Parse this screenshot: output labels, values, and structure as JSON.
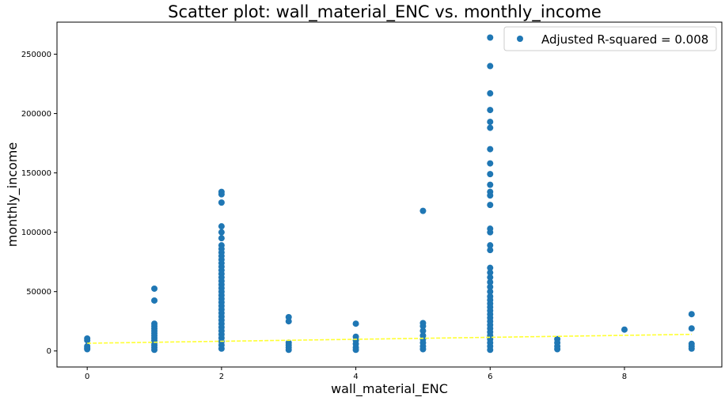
{
  "chart_data": {
    "type": "scatter",
    "title": "Scatter plot: wall_material_ENC vs. monthly_income",
    "xlabel": "wall_material_ENC",
    "ylabel": "monthly_income",
    "xlim": [
      -0.45,
      9.45
    ],
    "ylim": [
      -13500,
      277000
    ],
    "xticks": [
      0,
      2,
      4,
      6,
      8
    ],
    "yticks": [
      0,
      50000,
      100000,
      150000,
      200000,
      250000
    ],
    "grid": false,
    "legend_position": "top-right",
    "colors": {
      "points": "#1f77b4",
      "fit_line": "#ffff33",
      "axes": "#000000"
    },
    "series": [
      {
        "name": "Adjusted R-squared = 0.008",
        "points": [
          [
            0,
            10500
          ],
          [
            0,
            9000
          ],
          [
            0,
            4000
          ],
          [
            0,
            2500
          ],
          [
            0,
            1500
          ],
          [
            1,
            52500
          ],
          [
            1,
            42500
          ],
          [
            1,
            23000
          ],
          [
            1,
            21000
          ],
          [
            1,
            19000
          ],
          [
            1,
            17000
          ],
          [
            1,
            15000
          ],
          [
            1,
            13000
          ],
          [
            1,
            11000
          ],
          [
            1,
            9000
          ],
          [
            1,
            7000
          ],
          [
            1,
            5000
          ],
          [
            1,
            3000
          ],
          [
            1,
            1000
          ],
          [
            2,
            134000
          ],
          [
            2,
            132000
          ],
          [
            2,
            125000
          ],
          [
            2,
            105000
          ],
          [
            2,
            100000
          ],
          [
            2,
            95000
          ],
          [
            2,
            89000
          ],
          [
            2,
            86000
          ],
          [
            2,
            83000
          ],
          [
            2,
            80000
          ],
          [
            2,
            77000
          ],
          [
            2,
            74000
          ],
          [
            2,
            71000
          ],
          [
            2,
            68000
          ],
          [
            2,
            65000
          ],
          [
            2,
            62000
          ],
          [
            2,
            59000
          ],
          [
            2,
            56000
          ],
          [
            2,
            53000
          ],
          [
            2,
            50000
          ],
          [
            2,
            47000
          ],
          [
            2,
            44000
          ],
          [
            2,
            41000
          ],
          [
            2,
            38000
          ],
          [
            2,
            35000
          ],
          [
            2,
            32000
          ],
          [
            2,
            29000
          ],
          [
            2,
            26000
          ],
          [
            2,
            23000
          ],
          [
            2,
            20000
          ],
          [
            2,
            17000
          ],
          [
            2,
            14000
          ],
          [
            2,
            11000
          ],
          [
            2,
            8000
          ],
          [
            2,
            5000
          ],
          [
            2,
            2000
          ],
          [
            3,
            28500
          ],
          [
            3,
            25000
          ],
          [
            3,
            7000
          ],
          [
            3,
            5000
          ],
          [
            3,
            3000
          ],
          [
            3,
            1000
          ],
          [
            4,
            23000
          ],
          [
            4,
            12000
          ],
          [
            4,
            9000
          ],
          [
            4,
            6000
          ],
          [
            4,
            3000
          ],
          [
            4,
            1000
          ],
          [
            5,
            118000
          ],
          [
            5,
            23500
          ],
          [
            5,
            21000
          ],
          [
            5,
            17000
          ],
          [
            5,
            13000
          ],
          [
            5,
            10000
          ],
          [
            5,
            7000
          ],
          [
            5,
            4000
          ],
          [
            5,
            1500
          ],
          [
            6,
            264000
          ],
          [
            6,
            240000
          ],
          [
            6,
            217000
          ],
          [
            6,
            203000
          ],
          [
            6,
            193000
          ],
          [
            6,
            188000
          ],
          [
            6,
            170000
          ],
          [
            6,
            158000
          ],
          [
            6,
            149000
          ],
          [
            6,
            140000
          ],
          [
            6,
            134000
          ],
          [
            6,
            131000
          ],
          [
            6,
            123000
          ],
          [
            6,
            103000
          ],
          [
            6,
            100000
          ],
          [
            6,
            89000
          ],
          [
            6,
            85000
          ],
          [
            6,
            70000
          ],
          [
            6,
            66000
          ],
          [
            6,
            62000
          ],
          [
            6,
            58000
          ],
          [
            6,
            54000
          ],
          [
            6,
            50000
          ],
          [
            6,
            46000
          ],
          [
            6,
            43000
          ],
          [
            6,
            40000
          ],
          [
            6,
            37000
          ],
          [
            6,
            34000
          ],
          [
            6,
            31000
          ],
          [
            6,
            28000
          ],
          [
            6,
            25000
          ],
          [
            6,
            22000
          ],
          [
            6,
            19000
          ],
          [
            6,
            16000
          ],
          [
            6,
            13000
          ],
          [
            6,
            10000
          ],
          [
            6,
            7000
          ],
          [
            6,
            4000
          ],
          [
            6,
            1000
          ],
          [
            7,
            10000
          ],
          [
            7,
            7000
          ],
          [
            7,
            4000
          ],
          [
            7,
            1500
          ],
          [
            8,
            18000
          ],
          [
            9,
            31000
          ],
          [
            9,
            19000
          ],
          [
            9,
            6000
          ],
          [
            9,
            4000
          ],
          [
            9,
            2000
          ]
        ]
      }
    ],
    "fit_line": {
      "x": [
        0,
        9
      ],
      "y": [
        6500,
        14000
      ]
    }
  }
}
